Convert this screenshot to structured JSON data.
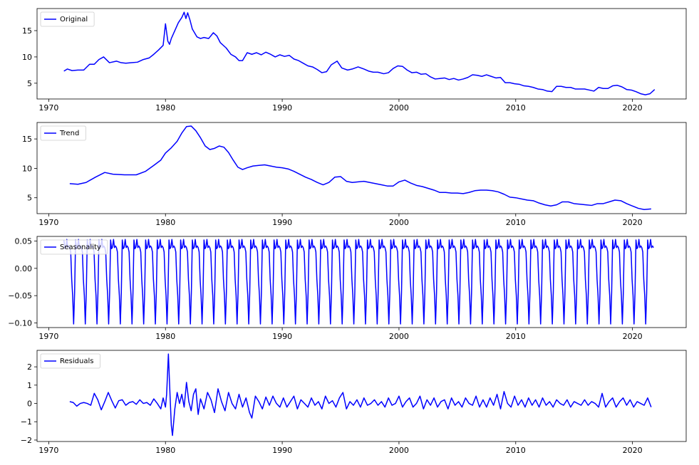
{
  "chart_data": [
    {
      "type": "line",
      "title": "",
      "xlabel": "",
      "ylabel": "",
      "legend_location": "upper-left",
      "grid": false,
      "line_color": "#0000ff",
      "xlim": [
        1969.0,
        2024.6
      ],
      "ylim": [
        2.0,
        19.2
      ],
      "xticks": [
        1970,
        1980,
        1990,
        2000,
        2010,
        2020
      ],
      "yticks": [
        5,
        10,
        15
      ],
      "series": [
        {
          "name": "Original",
          "x": [
            1971.3,
            1971.6,
            1972.0,
            1972.5,
            1973.0,
            1973.5,
            1973.9,
            1974.3,
            1974.7,
            1975.2,
            1975.8,
            1976.2,
            1976.6,
            1977.1,
            1977.6,
            1978.1,
            1978.6,
            1979.0,
            1979.4,
            1979.8,
            1980.0,
            1980.2,
            1980.35,
            1980.5,
            1980.8,
            1981.1,
            1981.4,
            1981.6,
            1981.75,
            1981.9,
            1982.1,
            1982.3,
            1982.7,
            1983.0,
            1983.3,
            1983.7,
            1984.1,
            1984.4,
            1984.7,
            1985.2,
            1985.6,
            1986.0,
            1986.3,
            1986.6,
            1987.0,
            1987.4,
            1987.8,
            1988.2,
            1988.6,
            1989.0,
            1989.4,
            1989.8,
            1990.2,
            1990.6,
            1991.0,
            1991.4,
            1991.8,
            1992.2,
            1992.6,
            1993.0,
            1993.4,
            1993.8,
            1994.2,
            1994.7,
            1995.1,
            1995.6,
            1996.0,
            1996.5,
            1997.0,
            1997.4,
            1997.8,
            1998.2,
            1998.7,
            1999.1,
            1999.5,
            1999.9,
            2000.3,
            2000.7,
            2001.1,
            2001.5,
            2001.9,
            2002.3,
            2002.7,
            2003.1,
            2003.5,
            2003.9,
            2004.3,
            2004.7,
            2005.1,
            2005.5,
            2005.9,
            2006.3,
            2006.7,
            2007.1,
            2007.5,
            2007.9,
            2008.3,
            2008.7,
            2009.1,
            2009.5,
            2009.9,
            2010.3,
            2010.7,
            2011.1,
            2011.5,
            2011.9,
            2012.3,
            2012.7,
            2013.1,
            2013.5,
            2013.9,
            2014.3,
            2014.7,
            2015.1,
            2015.5,
            2015.9,
            2016.3,
            2016.7,
            2017.1,
            2017.5,
            2017.9,
            2018.3,
            2018.7,
            2019.1,
            2019.5,
            2019.9,
            2020.3,
            2020.7,
            2021.1,
            2021.5,
            2021.9
          ],
          "y": [
            7.3,
            7.7,
            7.4,
            7.5,
            7.5,
            8.6,
            8.6,
            9.5,
            10.0,
            8.9,
            9.2,
            8.9,
            8.8,
            8.9,
            9.0,
            9.5,
            9.8,
            10.5,
            11.3,
            12.2,
            16.3,
            13.0,
            12.4,
            13.5,
            15.0,
            16.5,
            17.5,
            18.5,
            17.3,
            18.4,
            17.0,
            15.3,
            13.8,
            13.5,
            13.7,
            13.5,
            14.6,
            14.0,
            12.7,
            11.7,
            10.5,
            10.0,
            9.3,
            9.3,
            10.8,
            10.5,
            10.8,
            10.4,
            10.9,
            10.5,
            10.0,
            10.4,
            10.1,
            10.3,
            9.6,
            9.3,
            8.8,
            8.3,
            8.1,
            7.6,
            7.0,
            7.2,
            8.5,
            9.2,
            7.9,
            7.5,
            7.7,
            8.1,
            7.7,
            7.3,
            7.1,
            7.1,
            6.8,
            7.0,
            7.8,
            8.3,
            8.2,
            7.5,
            7.0,
            7.1,
            6.7,
            6.8,
            6.2,
            5.8,
            5.9,
            6.0,
            5.7,
            5.9,
            5.6,
            5.8,
            6.1,
            6.6,
            6.5,
            6.3,
            6.6,
            6.3,
            6.0,
            6.1,
            5.1,
            5.1,
            4.9,
            4.8,
            4.5,
            4.4,
            4.2,
            3.9,
            3.8,
            3.5,
            3.4,
            4.4,
            4.4,
            4.2,
            4.2,
            3.9,
            3.9,
            3.9,
            3.7,
            3.5,
            4.2,
            4.0,
            4.0,
            4.5,
            4.6,
            4.3,
            3.8,
            3.7,
            3.4,
            3.0,
            2.8,
            3.0,
            3.8
          ]
        }
      ]
    },
    {
      "type": "line",
      "title": "",
      "xlabel": "",
      "ylabel": "",
      "legend_location": "upper-left",
      "grid": false,
      "line_color": "#0000ff",
      "xlim": [
        1969.0,
        2024.6
      ],
      "ylim": [
        2.3,
        17.8
      ],
      "xticks": [
        1970,
        1980,
        1990,
        2000,
        2010,
        2020
      ],
      "yticks": [
        5,
        10,
        15
      ],
      "series": [
        {
          "name": "Trend",
          "x": [
            1971.8,
            1972.5,
            1973.2,
            1974.0,
            1974.8,
            1975.5,
            1976.5,
            1977.5,
            1978.3,
            1979.0,
            1979.6,
            1980.0,
            1980.5,
            1981.0,
            1981.4,
            1981.8,
            1982.2,
            1982.6,
            1983.0,
            1983.4,
            1983.8,
            1984.2,
            1984.6,
            1985.0,
            1985.4,
            1985.8,
            1986.2,
            1986.6,
            1987.0,
            1987.5,
            1988.0,
            1988.5,
            1989.0,
            1989.5,
            1990.0,
            1990.5,
            1991.0,
            1991.5,
            1992.0,
            1992.5,
            1993.0,
            1993.5,
            1994.0,
            1994.5,
            1995.0,
            1995.5,
            1996.0,
            1996.5,
            1997.0,
            1997.5,
            1998.0,
            1998.5,
            1999.0,
            1999.5,
            2000.0,
            2000.5,
            2001.0,
            2001.5,
            2002.0,
            2002.5,
            2003.0,
            2003.5,
            2004.0,
            2004.5,
            2005.0,
            2005.5,
            2006.0,
            2006.5,
            2007.0,
            2007.5,
            2008.0,
            2008.5,
            2009.0,
            2009.5,
            2010.0,
            2010.5,
            2011.0,
            2011.5,
            2012.0,
            2012.5,
            2013.0,
            2013.5,
            2014.0,
            2014.5,
            2015.0,
            2015.5,
            2016.0,
            2016.5,
            2017.0,
            2017.5,
            2018.0,
            2018.5,
            2019.0,
            2019.5,
            2020.0,
            2020.5,
            2021.0,
            2021.6
          ],
          "y": [
            7.4,
            7.3,
            7.6,
            8.5,
            9.3,
            9.0,
            8.9,
            8.9,
            9.5,
            10.5,
            11.4,
            12.6,
            13.5,
            14.6,
            16.0,
            17.1,
            17.2,
            16.4,
            15.2,
            13.8,
            13.2,
            13.4,
            13.8,
            13.6,
            12.7,
            11.4,
            10.2,
            9.8,
            10.1,
            10.4,
            10.5,
            10.6,
            10.4,
            10.2,
            10.1,
            9.9,
            9.5,
            9.0,
            8.5,
            8.1,
            7.6,
            7.2,
            7.6,
            8.5,
            8.6,
            7.8,
            7.6,
            7.7,
            7.8,
            7.6,
            7.4,
            7.2,
            7.0,
            7.0,
            7.7,
            8.0,
            7.5,
            7.1,
            6.9,
            6.6,
            6.3,
            5.9,
            5.9,
            5.8,
            5.8,
            5.7,
            5.9,
            6.2,
            6.3,
            6.3,
            6.2,
            6.0,
            5.6,
            5.1,
            5.0,
            4.8,
            4.6,
            4.5,
            4.1,
            3.8,
            3.6,
            3.8,
            4.3,
            4.3,
            4.0,
            3.9,
            3.8,
            3.7,
            4.0,
            4.0,
            4.3,
            4.6,
            4.5,
            4.0,
            3.6,
            3.2,
            3.0,
            3.1
          ]
        }
      ]
    },
    {
      "type": "line",
      "title": "",
      "xlabel": "",
      "ylabel": "",
      "legend_location": "upper-left",
      "grid": false,
      "line_color": "#0000ff",
      "xlim": [
        1969.0,
        2024.6
      ],
      "ylim": [
        -0.1085,
        0.0585
      ],
      "xticks": [
        1970,
        1980,
        1990,
        2000,
        2010,
        2020
      ],
      "yticks": [
        0.05,
        0.0,
        -0.05,
        -0.1
      ],
      "ytick_labels": [
        "0.05",
        "0.00",
        "−0.05",
        "−0.10"
      ],
      "periodic": {
        "start": 1971.3,
        "end": 2021.85,
        "period": 1.0,
        "cycle_phase": [
          0,
          0.0833,
          0.1667,
          0.25,
          0.3333,
          0.4167,
          0.5,
          0.5833,
          0.6667,
          0.75,
          0.8333,
          0.9167
        ],
        "cycle_values": [
          0.052,
          0.036,
          0.039,
          0.053,
          0.038,
          0.041,
          0.038,
          0.03,
          -0.02,
          -0.05,
          -0.102,
          -0.045
        ]
      },
      "series": [
        {
          "name": "Seasonality"
        }
      ]
    },
    {
      "type": "line",
      "title": "",
      "xlabel": "",
      "ylabel": "",
      "legend_location": "upper-left",
      "grid": false,
      "line_color": "#0000ff",
      "xlim": [
        1969.0,
        2024.6
      ],
      "ylim": [
        -2.08,
        2.9
      ],
      "xticks": [
        1970,
        1980,
        1990,
        2000,
        2010,
        2020
      ],
      "yticks": [
        2,
        1,
        0,
        -1,
        -2
      ],
      "ytick_labels": [
        "2",
        "1",
        "0",
        "−1",
        "−2"
      ],
      "series": [
        {
          "name": "Residuals",
          "x": [
            1971.8,
            1972.1,
            1972.4,
            1972.7,
            1973.0,
            1973.3,
            1973.6,
            1973.9,
            1974.2,
            1974.5,
            1974.8,
            1975.1,
            1975.4,
            1975.7,
            1976.0,
            1976.3,
            1976.6,
            1976.9,
            1977.2,
            1977.5,
            1977.8,
            1978.1,
            1978.4,
            1978.7,
            1979.0,
            1979.3,
            1979.6,
            1979.8,
            1980.0,
            1980.1,
            1980.25,
            1980.4,
            1980.5,
            1980.6,
            1980.8,
            1981.0,
            1981.2,
            1981.4,
            1981.6,
            1981.8,
            1982.0,
            1982.2,
            1982.4,
            1982.6,
            1982.8,
            1983.0,
            1983.3,
            1983.6,
            1983.9,
            1984.2,
            1984.5,
            1984.8,
            1985.1,
            1985.4,
            1985.7,
            1986.0,
            1986.3,
            1986.6,
            1986.9,
            1987.2,
            1987.4,
            1987.7,
            1988.0,
            1988.3,
            1988.6,
            1988.9,
            1989.2,
            1989.5,
            1989.8,
            1990.1,
            1990.4,
            1990.7,
            1991.0,
            1991.3,
            1991.6,
            1991.9,
            1992.2,
            1992.5,
            1992.8,
            1993.1,
            1993.4,
            1993.7,
            1994.0,
            1994.3,
            1994.6,
            1994.9,
            1995.2,
            1995.5,
            1995.8,
            1996.1,
            1996.4,
            1996.7,
            1997.0,
            1997.3,
            1997.6,
            1997.9,
            1998.2,
            1998.5,
            1998.8,
            1999.1,
            1999.4,
            1999.7,
            2000.0,
            2000.3,
            2000.6,
            2000.9,
            2001.2,
            2001.5,
            2001.8,
            2002.1,
            2002.4,
            2002.7,
            2003.0,
            2003.3,
            2003.6,
            2003.9,
            2004.2,
            2004.5,
            2004.8,
            2005.1,
            2005.4,
            2005.7,
            2006.0,
            2006.3,
            2006.6,
            2006.9,
            2007.2,
            2007.5,
            2007.8,
            2008.1,
            2008.4,
            2008.7,
            2009.0,
            2009.3,
            2009.6,
            2009.9,
            2010.2,
            2010.5,
            2010.8,
            2011.1,
            2011.4,
            2011.7,
            2012.0,
            2012.3,
            2012.6,
            2012.9,
            2013.2,
            2013.5,
            2013.8,
            2014.1,
            2014.4,
            2014.7,
            2015.0,
            2015.3,
            2015.6,
            2015.9,
            2016.2,
            2016.5,
            2016.8,
            2017.1,
            2017.4,
            2017.7,
            2018.0,
            2018.3,
            2018.6,
            2018.9,
            2019.2,
            2019.5,
            2019.8,
            2020.1,
            2020.4,
            2020.7,
            2021.0,
            2021.3,
            2021.6
          ],
          "y": [
            0.1,
            0.05,
            -0.15,
            0.0,
            0.05,
            0.0,
            -0.1,
            0.55,
            0.2,
            -0.35,
            0.1,
            0.6,
            0.15,
            -0.25,
            0.15,
            0.2,
            -0.1,
            0.05,
            0.1,
            -0.05,
            0.2,
            0.0,
            0.05,
            -0.1,
            0.25,
            0.0,
            -0.3,
            0.3,
            -0.2,
            0.5,
            2.7,
            0.3,
            -1.2,
            -1.75,
            -0.3,
            0.6,
            0.0,
            0.5,
            -0.2,
            1.15,
            0.1,
            -0.4,
            0.5,
            0.8,
            -0.6,
            0.25,
            -0.3,
            0.6,
            0.2,
            -0.5,
            0.8,
            0.1,
            -0.4,
            0.6,
            0.0,
            -0.3,
            0.5,
            -0.2,
            0.3,
            -0.5,
            -0.8,
            0.4,
            0.1,
            -0.3,
            0.35,
            -0.1,
            0.4,
            0.0,
            -0.2,
            0.3,
            -0.2,
            0.1,
            0.4,
            -0.3,
            0.2,
            0.0,
            -0.2,
            0.3,
            -0.1,
            0.1,
            -0.3,
            0.4,
            0.0,
            0.15,
            -0.2,
            0.3,
            0.6,
            -0.3,
            0.1,
            -0.1,
            0.2,
            -0.2,
            0.3,
            -0.1,
            0.0,
            0.2,
            -0.1,
            0.1,
            -0.2,
            0.3,
            -0.1,
            0.0,
            0.4,
            -0.2,
            0.1,
            0.3,
            -0.2,
            0.0,
            0.4,
            -0.3,
            0.2,
            -0.1,
            0.3,
            -0.2,
            0.1,
            0.2,
            -0.3,
            0.3,
            -0.1,
            0.1,
            -0.2,
            0.3,
            0.0,
            -0.1,
            0.4,
            -0.2,
            0.2,
            -0.2,
            0.3,
            -0.1,
            0.5,
            -0.3,
            0.65,
            0.0,
            -0.2,
            0.4,
            -0.1,
            0.2,
            -0.2,
            0.3,
            -0.1,
            0.2,
            -0.2,
            0.3,
            -0.1,
            0.1,
            -0.2,
            0.2,
            0.0,
            -0.1,
            0.2,
            -0.2,
            0.1,
            0.0,
            -0.1,
            0.2,
            -0.1,
            0.1,
            0.0,
            -0.2,
            0.55,
            -0.2,
            0.1,
            0.3,
            -0.2,
            0.1,
            0.3,
            -0.1,
            0.2,
            -0.2,
            0.1,
            0.0,
            -0.1,
            0.3,
            -0.2
          ]
        }
      ]
    }
  ]
}
